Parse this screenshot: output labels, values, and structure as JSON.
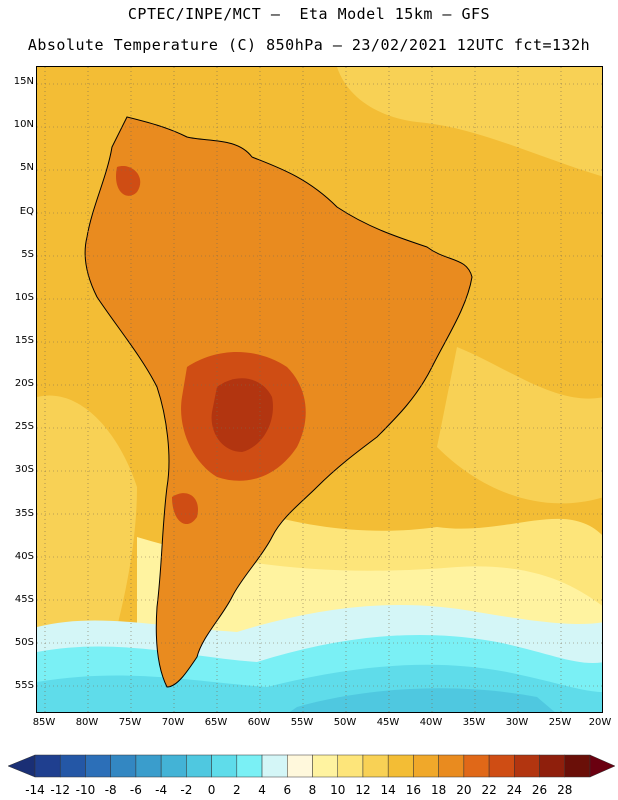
{
  "header": {
    "line1": "CPTEC/INPE/MCT –  Eta Model 15km – GFS",
    "line2": "Absolute Temperature (C) 850hPa – 23/02/2021 12UTC fct=132h"
  },
  "map": {
    "region": "South America",
    "lat_labels": [
      "15N",
      "10N",
      "5N",
      "EQ",
      "5S",
      "10S",
      "15S",
      "20S",
      "25S",
      "30S",
      "35S",
      "40S",
      "45S",
      "50S",
      "55S"
    ],
    "lon_labels": [
      "85W",
      "80W",
      "75W",
      "70W",
      "65W",
      "60W",
      "55W",
      "50W",
      "45W",
      "40W",
      "35W",
      "30W",
      "25W",
      "20W"
    ]
  },
  "colorbar": {
    "unit": "C",
    "tick_labels": [
      "-14",
      "-12",
      "-10",
      "-8",
      "-6",
      "-4",
      "-2",
      "0",
      "2",
      "4",
      "6",
      "8",
      "10",
      "12",
      "14",
      "16",
      "18",
      "20",
      "22",
      "24",
      "26",
      "28"
    ],
    "colors": [
      "#1f3f8f",
      "#2457a6",
      "#2c6fb8",
      "#3387c2",
      "#3a9dcc",
      "#43b3d6",
      "#4fc8e0",
      "#5fdcea",
      "#7af0f5",
      "#d4f6f7",
      "#fff8dc",
      "#fff3a0",
      "#fde57a",
      "#f8d155",
      "#f3bd35",
      "#f0a82a",
      "#e98b1f",
      "#e06818",
      "#cf4d14",
      "#b23510",
      "#8f1f0c",
      "#6a0f08"
    ],
    "left_arrow_color": "#1a2f75",
    "right_arrow_color": "#6a0010"
  }
}
